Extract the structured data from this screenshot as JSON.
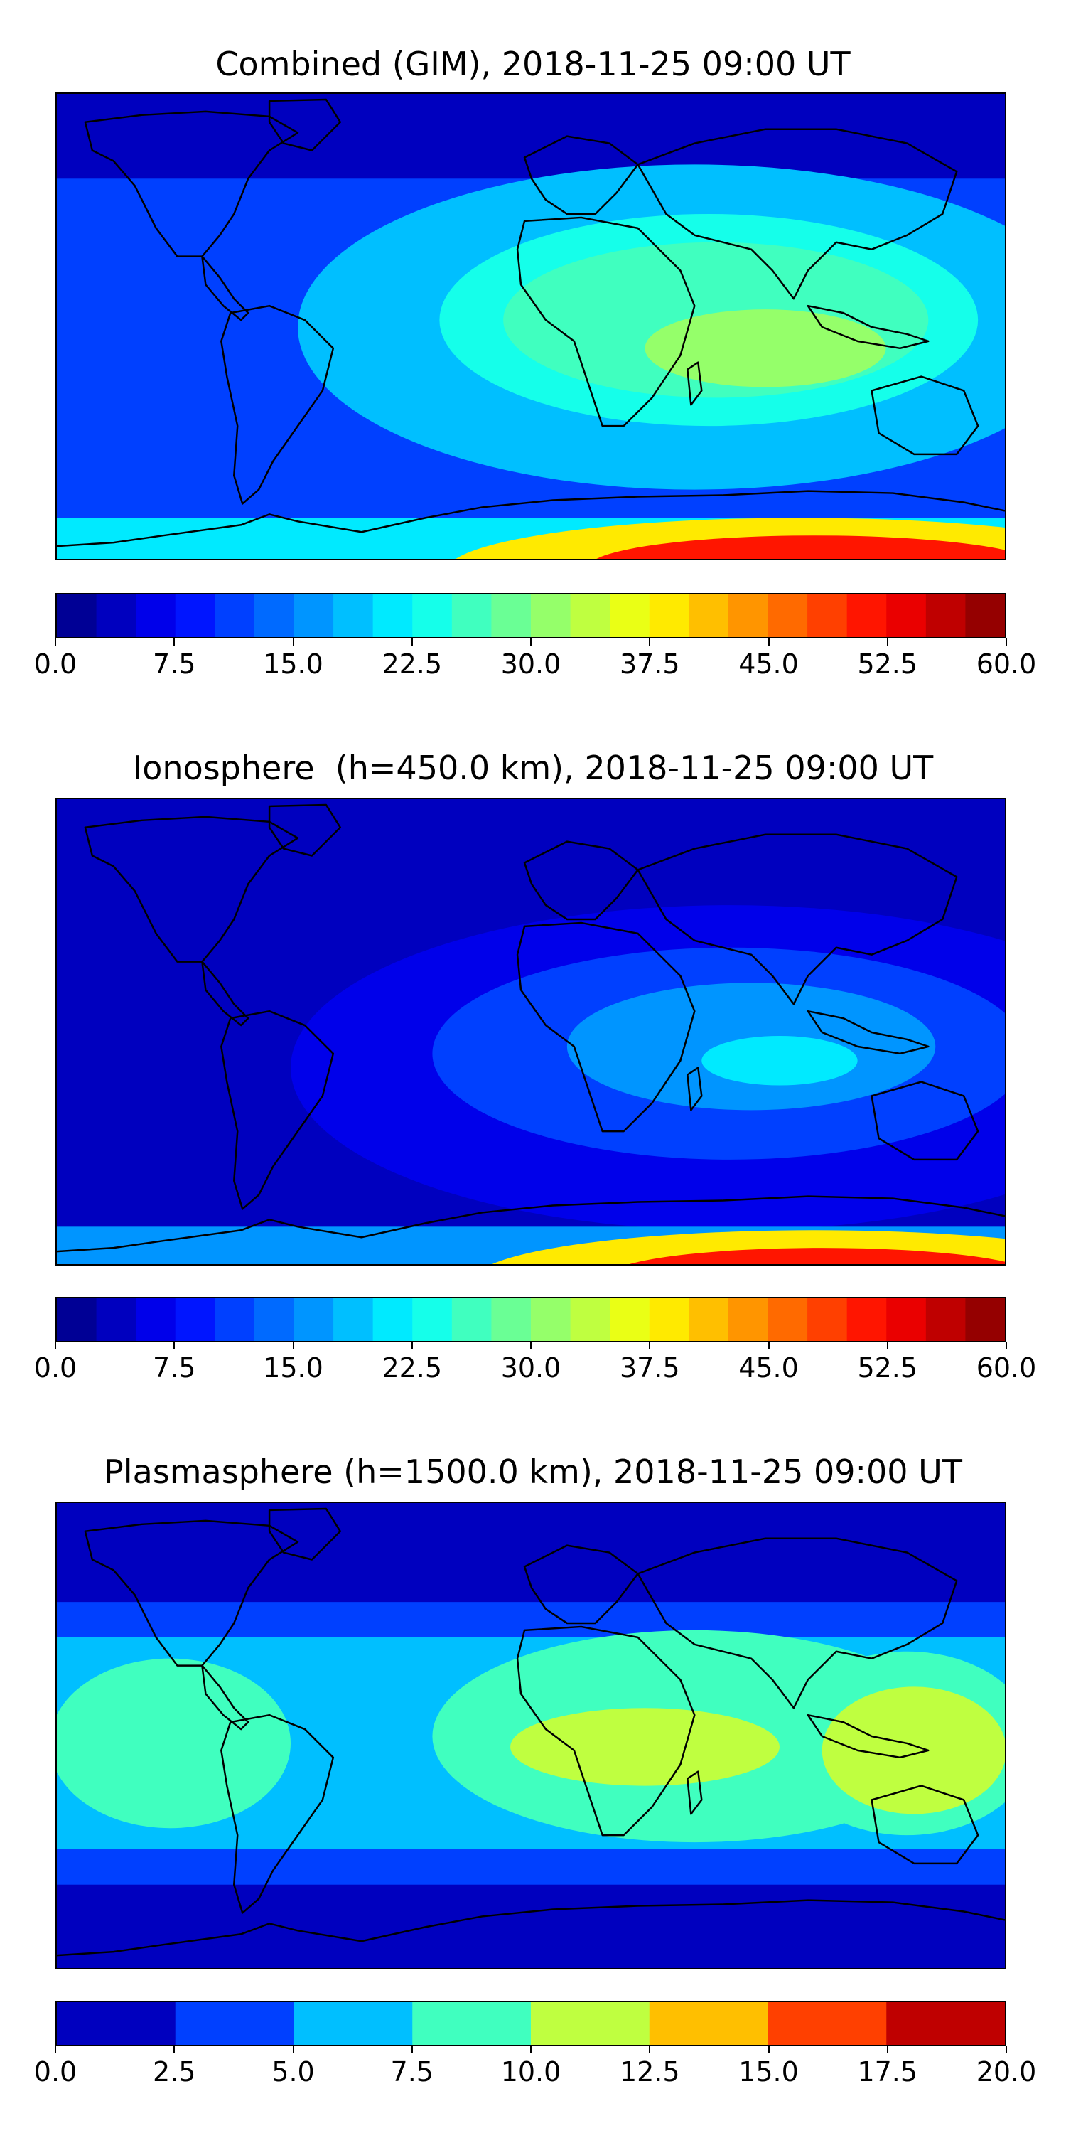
{
  "chart_data": [
    {
      "type": "heatmap",
      "title": "Combined (GIM), 2018-11-25 09:00 UT",
      "colorbar": {
        "levels": 24,
        "ticks": [
          "0.0",
          "7.5",
          "15.0",
          "22.5",
          "30.0",
          "37.5",
          "45.0",
          "52.5",
          "60.0"
        ],
        "tick_values": [
          0,
          7.5,
          15,
          22.5,
          30,
          37.5,
          45,
          52.5,
          60
        ],
        "range": [
          0,
          60
        ]
      },
      "features": [
        {
          "region": "background mid-latitudes",
          "value": 10
        },
        {
          "region": "northern high latitudes",
          "value": 4
        },
        {
          "region": "South Atlantic / Africa",
          "value": 18
        },
        {
          "region": "Indian Ocean / South Asia peak",
          "value": 32
        },
        {
          "region": "Antarctic edge",
          "value": 50
        }
      ]
    },
    {
      "type": "heatmap",
      "title": "Ionosphere  (h=450.0 km), 2018-11-25 09:00 UT",
      "colorbar": {
        "levels": 24,
        "ticks": [
          "0.0",
          "7.5",
          "15.0",
          "22.5",
          "30.0",
          "37.5",
          "45.0",
          "52.5",
          "60.0"
        ],
        "tick_values": [
          0,
          7.5,
          15,
          22.5,
          30,
          37.5,
          45,
          52.5,
          60
        ],
        "range": [
          0,
          60
        ]
      },
      "features": [
        {
          "region": "background",
          "value": 3
        },
        {
          "region": "Africa / Indian Ocean",
          "value": 12
        },
        {
          "region": "Indian Ocean peak",
          "value": 22
        },
        {
          "region": "Antarctic edge",
          "value": 52
        }
      ]
    },
    {
      "type": "heatmap",
      "title": "Plasmasphere (h=1500.0 km), 2018-11-25 09:00 UT",
      "colorbar": {
        "levels": 8,
        "ticks": [
          "0.0",
          "2.5",
          "5.0",
          "7.5",
          "10.0",
          "12.5",
          "15.0",
          "17.5",
          "20.0"
        ],
        "tick_values": [
          0,
          2.5,
          5,
          7.5,
          10,
          12.5,
          15,
          17.5,
          20
        ],
        "range": [
          0,
          20
        ]
      },
      "features": [
        {
          "region": "polar caps",
          "value": 1
        },
        {
          "region": "mid latitudes",
          "value": 4
        },
        {
          "region": "low latitudes",
          "value": 6
        },
        {
          "region": "equatorial band",
          "value": 9
        },
        {
          "region": "Africa and SE Asia maxima",
          "value": 11
        }
      ]
    }
  ]
}
